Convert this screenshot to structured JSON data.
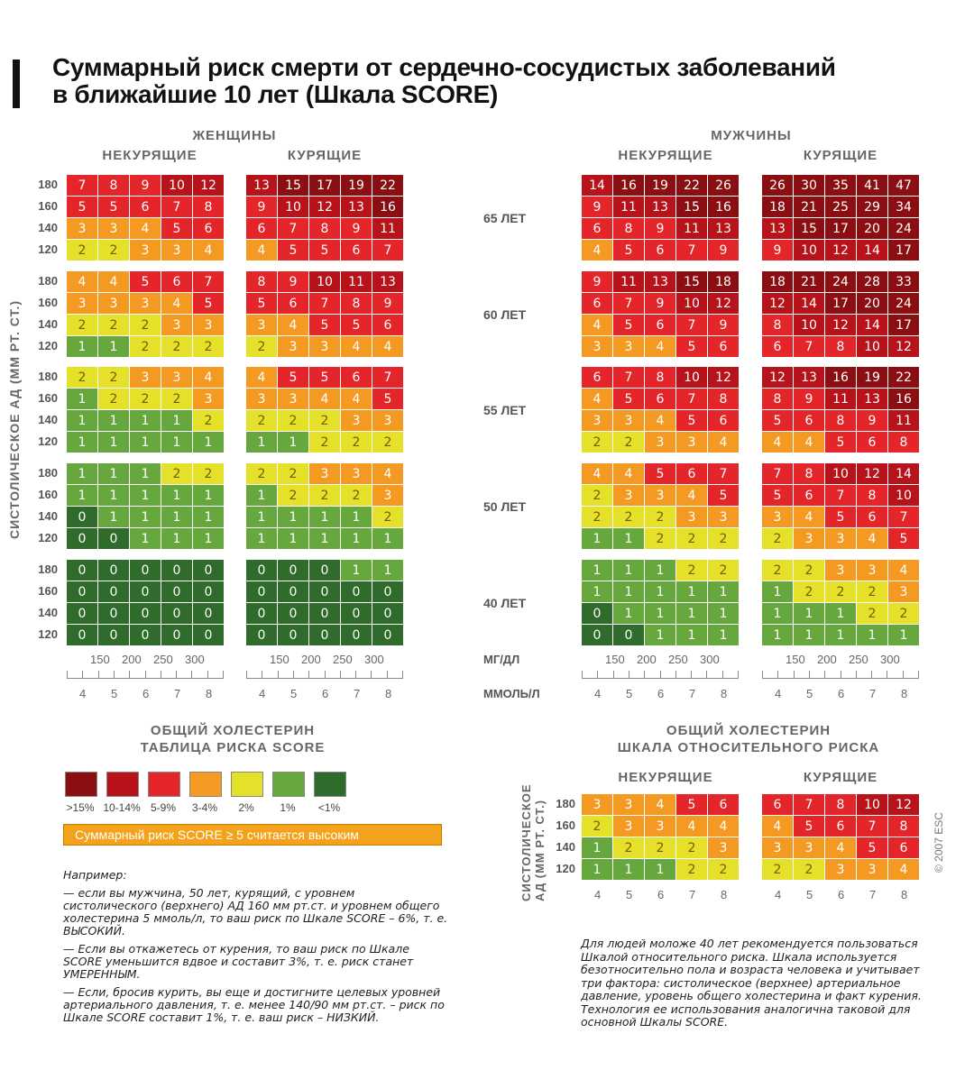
{
  "title_line1": "Суммарный риск смерти от сердечно-сосудистых заболеваний",
  "title_line2": "в ближайшие 10 лет (Шкала SCORE)",
  "headers": {
    "women": "ЖЕНЩИНЫ",
    "men": "МУЖЧИНЫ",
    "nonsmoking": "НЕКУРЯЩИЕ",
    "smoking": "КУРЯЩИЕ"
  },
  "y_axis_label": "СИСТОЛИЧЕСКОЕ АД (ММ РТ. СТ.)",
  "ages": [
    "65 ЛЕТ",
    "60 ЛЕТ",
    "55 ЛЕТ",
    "50 ЛЕТ",
    "40 ЛЕТ"
  ],
  "bp_levels": [
    "180",
    "160",
    "140",
    "120"
  ],
  "x_axis": {
    "mg_label": "МГ/ДЛ",
    "mmol_label": "ММОЛЬ/Л",
    "mg_ticks": [
      "150",
      "200",
      "250",
      "300"
    ],
    "mmol_ticks": [
      "4",
      "5",
      "6",
      "7",
      "8"
    ]
  },
  "caption_left_1": "ОБЩИЙ ХОЛЕСТЕРИН",
  "caption_left_2": "ТАБЛИЦА РИСКА SCORE",
  "caption_right_1": "ОБЩИЙ ХОЛЕСТЕРИН",
  "caption_right_2": "ШКАЛА ОТНОСИТЕЛЬНОГО РИСКА",
  "legend": [
    {
      "label": ">15%",
      "color": "#8b0f12"
    },
    {
      "label": "10-14%",
      "color": "#b8121a"
    },
    {
      "label": "5-9%",
      "color": "#e4262a"
    },
    {
      "label": "3-4%",
      "color": "#f49a23"
    },
    {
      "label": "2%",
      "color": "#e5e12a"
    },
    {
      "label": "1%",
      "color": "#67a83e"
    },
    {
      "label": "<1%",
      "color": "#2f6b2a"
    }
  ],
  "banner": "Суммарный риск SCORE ≥ 5 считается высоким",
  "example": {
    "intro": "Например:",
    "p1": "— если вы мужчина, 50 лет, курящий, с уровнем систолического (верхнего) АД 160 мм рт.ст. и уровнем общего холестерина 5 ммоль/л, то ваш риск по Шкале SCORE – 6%, т. е. ВЫСОКИЙ.",
    "p2": "— Если вы откажетесь от курения, то ваш риск по Шкале SCORE уменьшится вдвое и составит 3%, т. е. риск станет УМЕРЕННЫМ.",
    "p3": "— Если, бросив курить, вы еще и достигните целевых уровней артериального давления, т. е. менее 140/90 мм рт.ст. – риск по Шкале SCORE составит 1%, т. е. ваш риск – НИЗКИЙ."
  },
  "relative_note": "Для людей моложе 40 лет рекомендуется пользоваться Шкалой относительного риска. Шкала используется безотносительно пола и возраста человека и учитывает три фактора: систолическое (верхнее) артериальное давление, уровень общего холестерина и факт курения. Технология ее использования аналогична таковой для основной Шкалы SCORE.",
  "relative_y_label_1": "СИСТОЛИЧЕСКОЕ",
  "relative_y_label_2": "АД (ММ РТ. СТ.)",
  "copyright": "© 2007 ESC",
  "chart_data": {
    "type": "heatmap",
    "title": "Суммарный риск смерти от сердечно-сосудистых заболеваний в ближайшие 10 лет (Шкала SCORE)",
    "x_categories_mmol": [
      "4",
      "5",
      "6",
      "7",
      "8"
    ],
    "y_categories_bp": [
      "180",
      "160",
      "140",
      "120"
    ],
    "women_nonsmoking": {
      "65": [
        [
          7,
          8,
          9,
          10,
          12
        ],
        [
          5,
          5,
          6,
          7,
          8
        ],
        [
          3,
          3,
          4,
          5,
          6
        ],
        [
          2,
          2,
          3,
          3,
          4
        ]
      ],
      "60": [
        [
          4,
          4,
          5,
          6,
          7
        ],
        [
          3,
          3,
          3,
          4,
          5
        ],
        [
          2,
          2,
          2,
          3,
          3
        ],
        [
          1,
          1,
          2,
          2,
          2
        ]
      ],
      "55": [
        [
          2,
          2,
          3,
          3,
          4
        ],
        [
          1,
          2,
          2,
          2,
          3
        ],
        [
          1,
          1,
          1,
          1,
          2
        ],
        [
          1,
          1,
          1,
          1,
          1
        ]
      ],
      "50": [
        [
          1,
          1,
          1,
          2,
          2
        ],
        [
          1,
          1,
          1,
          1,
          1
        ],
        [
          0,
          1,
          1,
          1,
          1
        ],
        [
          0,
          0,
          1,
          1,
          1
        ]
      ],
      "40": [
        [
          0,
          0,
          0,
          0,
          0
        ],
        [
          0,
          0,
          0,
          0,
          0
        ],
        [
          0,
          0,
          0,
          0,
          0
        ],
        [
          0,
          0,
          0,
          0,
          0
        ]
      ]
    },
    "women_smoking": {
      "65": [
        [
          13,
          15,
          17,
          19,
          22
        ],
        [
          9,
          10,
          12,
          13,
          16
        ],
        [
          6,
          7,
          8,
          9,
          11
        ],
        [
          4,
          5,
          5,
          6,
          7
        ]
      ],
      "60": [
        [
          8,
          9,
          10,
          11,
          13
        ],
        [
          5,
          6,
          7,
          8,
          9
        ],
        [
          3,
          4,
          5,
          5,
          6
        ],
        [
          2,
          3,
          3,
          4,
          4
        ]
      ],
      "55": [
        [
          4,
          5,
          5,
          6,
          7
        ],
        [
          3,
          3,
          4,
          4,
          5
        ],
        [
          2,
          2,
          2,
          3,
          3
        ],
        [
          1,
          1,
          2,
          2,
          2
        ]
      ],
      "50": [
        [
          2,
          2,
          3,
          3,
          4
        ],
        [
          1,
          2,
          2,
          2,
          3
        ],
        [
          1,
          1,
          1,
          1,
          2
        ],
        [
          1,
          1,
          1,
          1,
          1
        ]
      ],
      "40": [
        [
          0,
          0,
          0,
          1,
          1
        ],
        [
          0,
          0,
          0,
          0,
          0
        ],
        [
          0,
          0,
          0,
          0,
          0
        ],
        [
          0,
          0,
          0,
          0,
          0
        ]
      ]
    },
    "men_nonsmoking": {
      "65": [
        [
          14,
          16,
          19,
          22,
          26
        ],
        [
          9,
          11,
          13,
          15,
          16
        ],
        [
          6,
          8,
          9,
          11,
          13
        ],
        [
          4,
          5,
          6,
          7,
          9
        ]
      ],
      "60": [
        [
          9,
          11,
          13,
          15,
          18
        ],
        [
          6,
          7,
          9,
          10,
          12
        ],
        [
          4,
          5,
          6,
          7,
          9
        ],
        [
          3,
          3,
          4,
          5,
          6
        ]
      ],
      "55": [
        [
          6,
          7,
          8,
          10,
          12
        ],
        [
          4,
          5,
          6,
          7,
          8
        ],
        [
          3,
          3,
          4,
          5,
          6
        ],
        [
          2,
          2,
          3,
          3,
          4
        ]
      ],
      "50": [
        [
          4,
          4,
          5,
          6,
          7
        ],
        [
          2,
          3,
          3,
          4,
          5
        ],
        [
          2,
          2,
          2,
          3,
          3
        ],
        [
          1,
          1,
          2,
          2,
          2
        ]
      ],
      "40": [
        [
          1,
          1,
          1,
          2,
          2
        ],
        [
          1,
          1,
          1,
          1,
          1
        ],
        [
          0,
          1,
          1,
          1,
          1
        ],
        [
          0,
          0,
          1,
          1,
          1
        ]
      ]
    },
    "men_smoking": {
      "65": [
        [
          26,
          30,
          35,
          41,
          47
        ],
        [
          18,
          21,
          25,
          29,
          34
        ],
        [
          13,
          15,
          17,
          20,
          24
        ],
        [
          9,
          10,
          12,
          14,
          17
        ]
      ],
      "60": [
        [
          18,
          21,
          24,
          28,
          33
        ],
        [
          12,
          14,
          17,
          20,
          24
        ],
        [
          8,
          10,
          12,
          14,
          17
        ],
        [
          6,
          7,
          8,
          10,
          12
        ]
      ],
      "55": [
        [
          12,
          13,
          16,
          19,
          22
        ],
        [
          8,
          9,
          11,
          13,
          16
        ],
        [
          5,
          6,
          8,
          9,
          11
        ],
        [
          4,
          4,
          5,
          6,
          8
        ]
      ],
      "50": [
        [
          7,
          8,
          10,
          12,
          14
        ],
        [
          5,
          6,
          7,
          8,
          10
        ],
        [
          3,
          4,
          5,
          6,
          7
        ],
        [
          2,
          3,
          3,
          4,
          5
        ]
      ],
      "40": [
        [
          2,
          2,
          3,
          3,
          4
        ],
        [
          1,
          2,
          2,
          2,
          3
        ],
        [
          1,
          1,
          1,
          2,
          2
        ],
        [
          1,
          1,
          1,
          1,
          1
        ]
      ]
    },
    "relative_nonsmoking": [
      [
        3,
        3,
        4,
        5,
        6
      ],
      [
        2,
        3,
        3,
        4,
        4
      ],
      [
        1,
        2,
        2,
        2,
        3
      ],
      [
        1,
        1,
        1,
        2,
        2
      ]
    ],
    "relative_smoking": [
      [
        6,
        7,
        8,
        10,
        12
      ],
      [
        4,
        5,
        6,
        7,
        8
      ],
      [
        3,
        3,
        4,
        5,
        6
      ],
      [
        2,
        2,
        3,
        3,
        4
      ]
    ],
    "relative_x_ticks": [
      "4",
      "5",
      "6",
      "7",
      "8"
    ]
  }
}
